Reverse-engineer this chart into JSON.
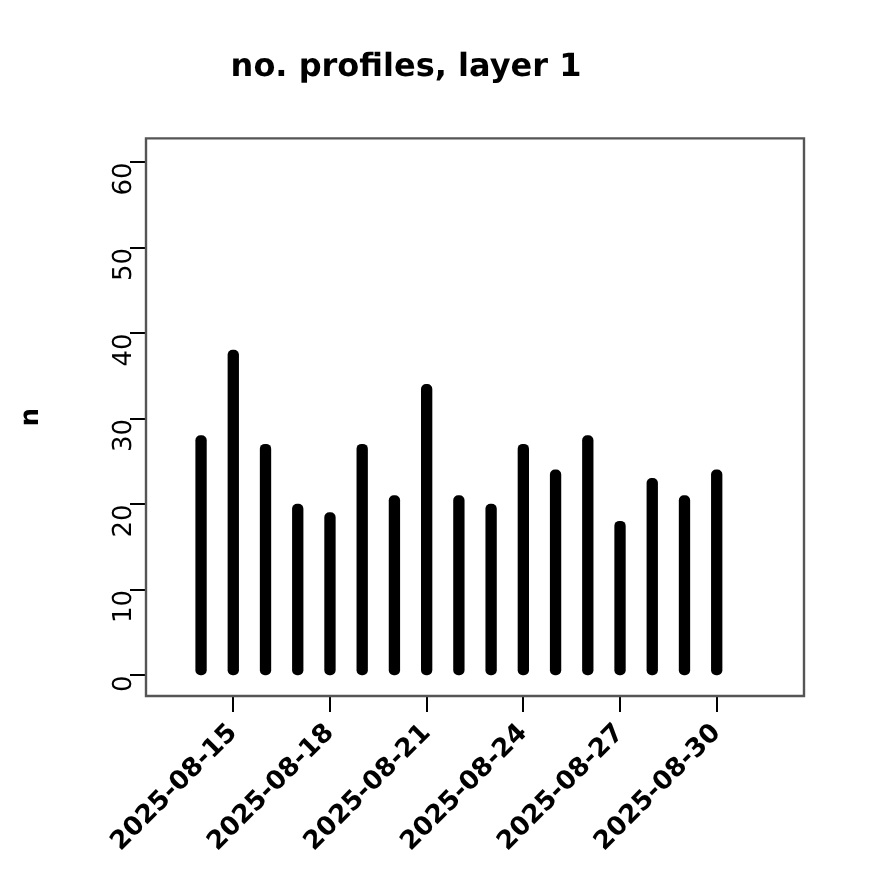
{
  "chart_data": {
    "type": "bar",
    "title": "no. profiles, layer 1",
    "ylabel": "n",
    "x": [
      "2025-08-14",
      "2025-08-15",
      "2025-08-16",
      "2025-08-17",
      "2025-08-18",
      "2025-08-19",
      "2025-08-20",
      "2025-08-21",
      "2025-08-22",
      "2025-08-23",
      "2025-08-24",
      "2025-08-25",
      "2025-08-26",
      "2025-08-27",
      "2025-08-28",
      "2025-08-29",
      "2025-08-30"
    ],
    "values": [
      28,
      38,
      27,
      20,
      19,
      27,
      21,
      34,
      21,
      20,
      27,
      24,
      28,
      18,
      23,
      21,
      24
    ],
    "color": "#000000",
    "xlim": [
      "2025-08-12T07:00",
      "2025-09-01T17:00"
    ],
    "xticks": [
      {
        "value": "2025-08-15",
        "label": "2025-08-15"
      },
      {
        "value": "2025-08-18",
        "label": "2025-08-18"
      },
      {
        "value": "2025-08-21",
        "label": "2025-08-21"
      },
      {
        "value": "2025-08-24",
        "label": "2025-08-24"
      },
      {
        "value": "2025-08-27",
        "label": "2025-08-27"
      },
      {
        "value": "2025-08-30",
        "label": "2025-08-30"
      }
    ],
    "ylim": [
      -2.4,
      62.8
    ],
    "yticks": [
      0,
      10,
      20,
      30,
      40,
      50,
      60
    ]
  }
}
